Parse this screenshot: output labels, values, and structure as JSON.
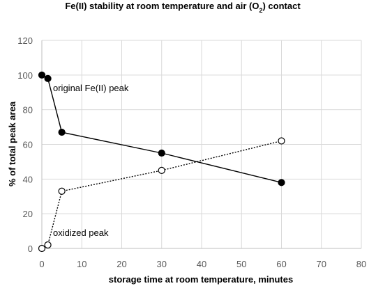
{
  "chart_data": {
    "type": "scatter",
    "title_main": "Fe(II) stability at room temperature and air (O",
    "title_sub": "2",
    "title_end": ") contact",
    "xlabel": "storage time at room temperature, minutes",
    "ylabel": "% of total peak area",
    "xlim": [
      0,
      80
    ],
    "ylim": [
      0,
      120
    ],
    "xticks": [
      0,
      10,
      20,
      30,
      40,
      50,
      60,
      70,
      80
    ],
    "yticks": [
      0,
      20,
      40,
      60,
      80,
      100,
      120
    ],
    "grid": true,
    "series": [
      {
        "label": "original Fe(II) peak",
        "marker": "filled-circle",
        "line": "solid",
        "color": "#000000",
        "x": [
          0,
          1.5,
          5,
          30,
          60
        ],
        "y": [
          100,
          98,
          67,
          55,
          38
        ]
      },
      {
        "label": "oxidized peak",
        "marker": "open-circle",
        "line": "dotted",
        "color": "#000000",
        "x": [
          0,
          1.5,
          5,
          30,
          60
        ],
        "y": [
          0,
          2,
          33,
          45,
          62
        ]
      }
    ]
  }
}
